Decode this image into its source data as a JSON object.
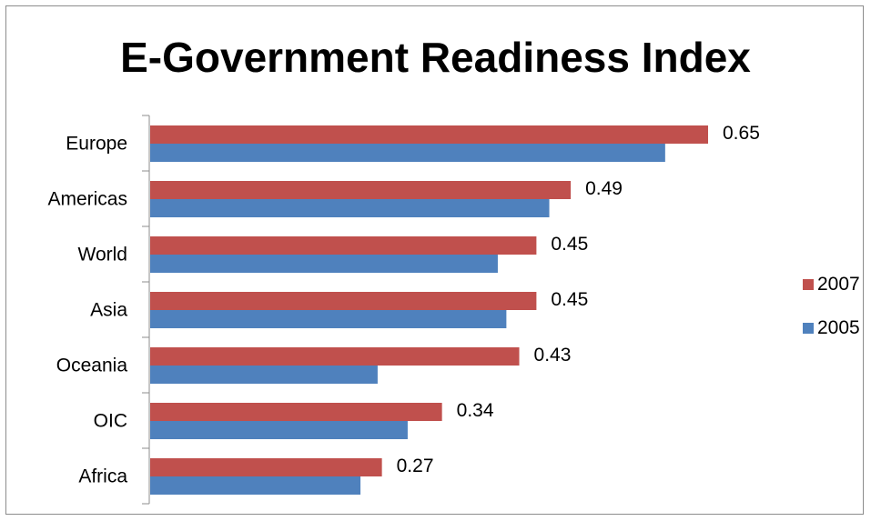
{
  "chart_data": {
    "type": "bar",
    "orientation": "horizontal",
    "title": "E-Government Readiness Index",
    "categories": [
      "Europe",
      "Americas",
      "World",
      "Asia",
      "Oceania",
      "OIC",
      "Africa"
    ],
    "series": [
      {
        "name": "2007",
        "color": "#c0504d",
        "values": [
          0.65,
          0.49,
          0.45,
          0.45,
          0.43,
          0.34,
          0.27
        ]
      },
      {
        "name": "2005",
        "color": "#4f81bd",
        "values": [
          0.6,
          0.465,
          0.405,
          0.415,
          0.265,
          0.3,
          0.245
        ]
      }
    ],
    "data_labels": [
      "0.65",
      "0.49",
      "0.45",
      "0.45",
      "0.43",
      "0.34",
      "0.27"
    ],
    "xlim": [
      0,
      0.7
    ],
    "grid": false,
    "legend_position": "right"
  }
}
